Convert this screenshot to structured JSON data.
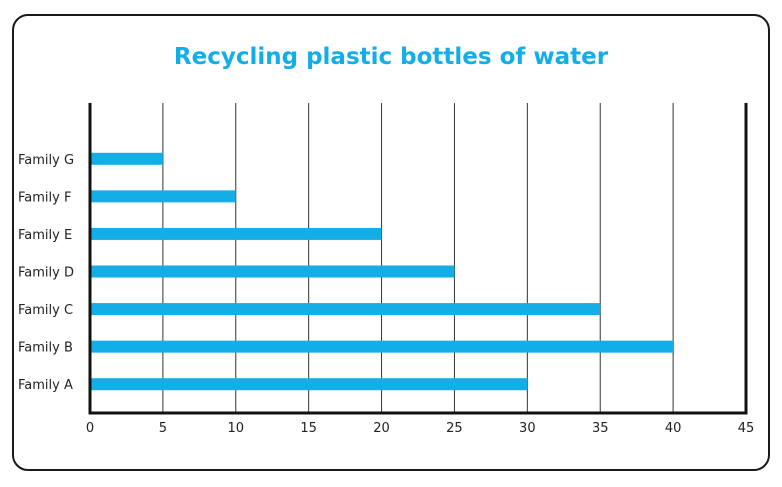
{
  "chart_data": {
    "type": "bar",
    "orientation": "horizontal",
    "title": "Recycling plastic bottles of water",
    "categories": [
      "Family A",
      "Family B",
      "Family C",
      "Family D",
      "Family E",
      "Family F",
      "Family G"
    ],
    "values": [
      30,
      40,
      35,
      25,
      20,
      10,
      5
    ],
    "xlim": [
      0,
      45
    ],
    "xticks": [
      0,
      5,
      10,
      15,
      20,
      25,
      30,
      35,
      40,
      45
    ],
    "xlabel": "",
    "ylabel": "",
    "grid": "vertical",
    "bar_color": "#14aee6"
  }
}
